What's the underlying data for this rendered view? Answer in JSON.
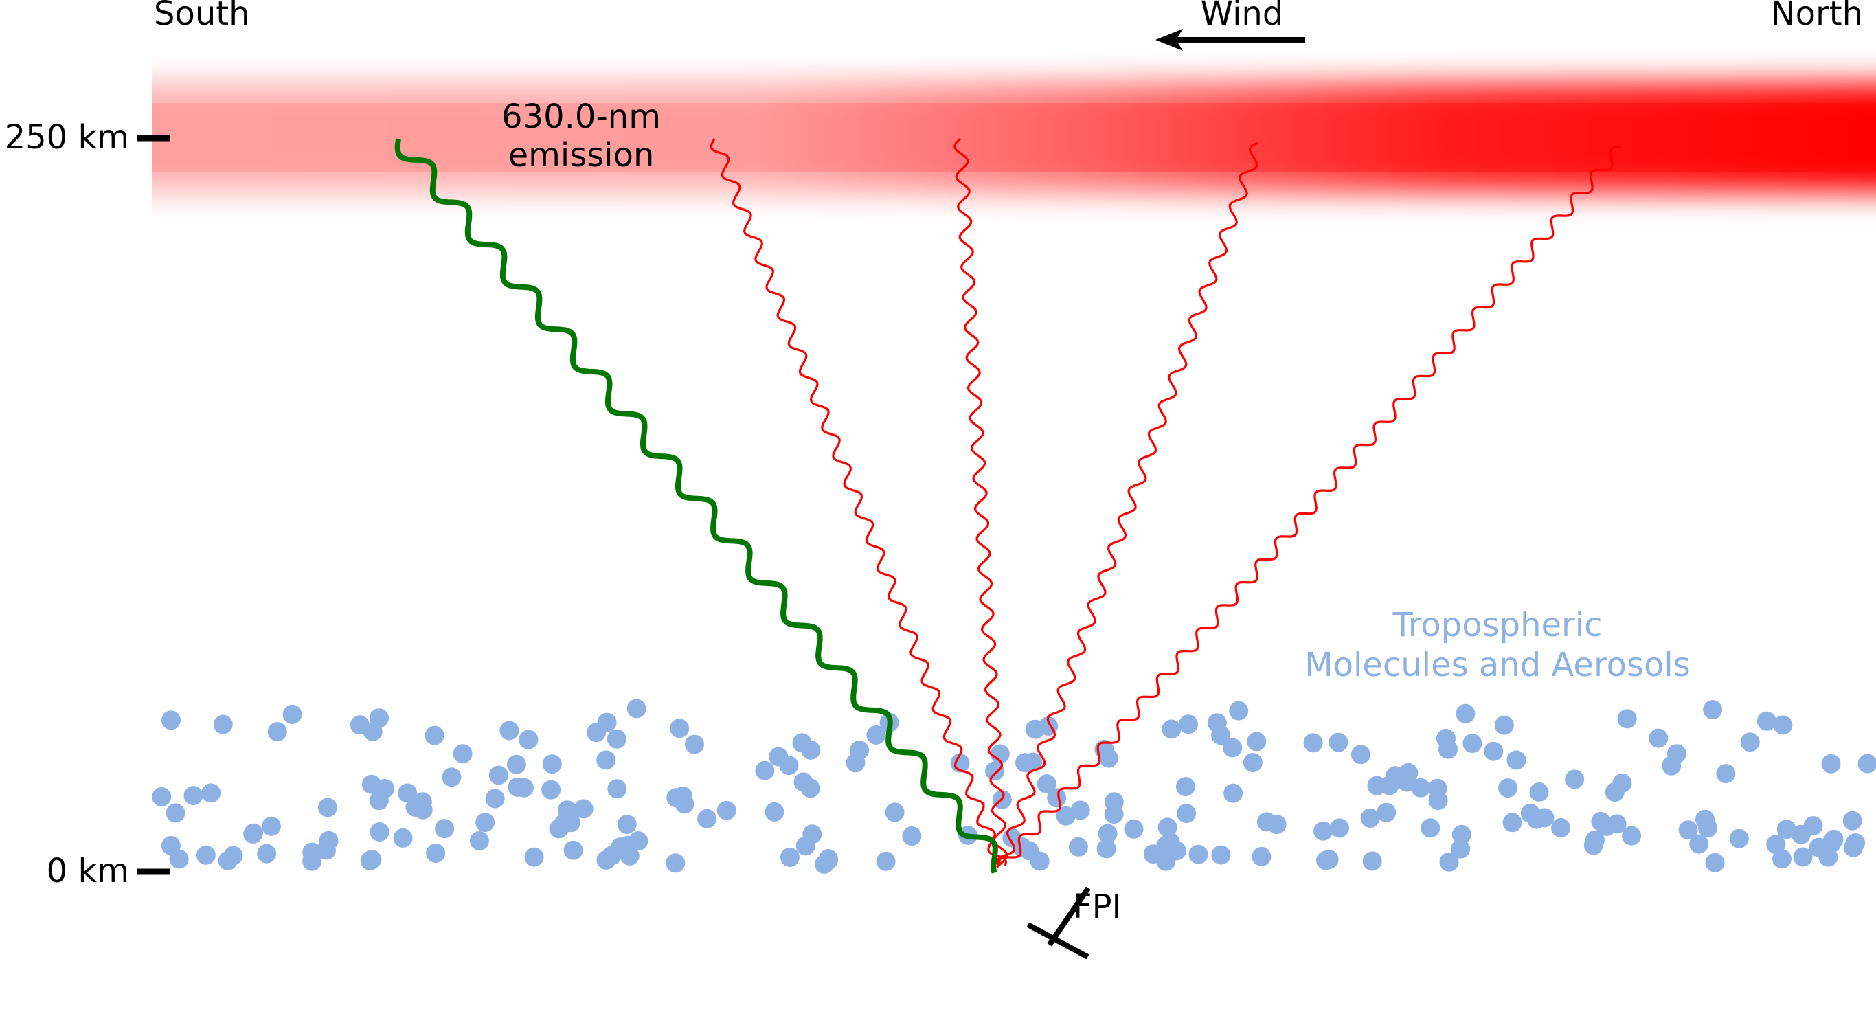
{
  "labels": {
    "south": "South",
    "north": "North",
    "wind": "Wind",
    "altitude_top": "250 km",
    "altitude_bottom": "0 km",
    "emission_line1": "630.0-nm",
    "emission_line2": "emission",
    "troposphere_line1": "Tropospheric",
    "troposphere_line2": "Molecules and Aerosols",
    "instrument": "FPI"
  },
  "colors": {
    "emission_layer": "#ff0000",
    "airglow_ray": "#ff0000",
    "scattered_ray": "#007700",
    "particles": "#8eb1e4",
    "text": "#000000"
  },
  "wind_direction": "north-to-south"
}
